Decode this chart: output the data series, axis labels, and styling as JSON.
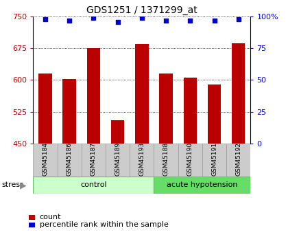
{
  "title": "GDS1251 / 1371299_at",
  "samples": [
    "GSM45184",
    "GSM45186",
    "GSM45187",
    "GSM45189",
    "GSM45193",
    "GSM45188",
    "GSM45190",
    "GSM45191",
    "GSM45192"
  ],
  "counts": [
    615,
    603,
    676,
    505,
    686,
    615,
    605,
    590,
    687
  ],
  "percentiles": [
    98,
    97,
    99,
    96,
    99,
    97,
    97,
    97,
    98
  ],
  "n_control": 5,
  "n_hypotension": 4,
  "ylim_left": [
    450,
    750
  ],
  "ylim_right": [
    0,
    100
  ],
  "yticks_left": [
    450,
    525,
    600,
    675,
    750
  ],
  "yticks_right": [
    0,
    25,
    50,
    75,
    100
  ],
  "bar_color": "#bb0000",
  "dot_color": "#0000cc",
  "bar_width": 0.55,
  "background_color": "#ffffff",
  "label_bg_color": "#cccccc",
  "label_edge_color": "#999999",
  "control_color": "#ccffcc",
  "hypotension_color": "#66dd66",
  "control_edge_color": "#66bb66",
  "stress_label": "stress",
  "legend_count_label": "count",
  "legend_pct_label": "percentile rank within the sample",
  "title_fontsize": 10,
  "tick_fontsize": 8,
  "label_fontsize": 6.5,
  "group_fontsize": 8,
  "legend_fontsize": 8
}
